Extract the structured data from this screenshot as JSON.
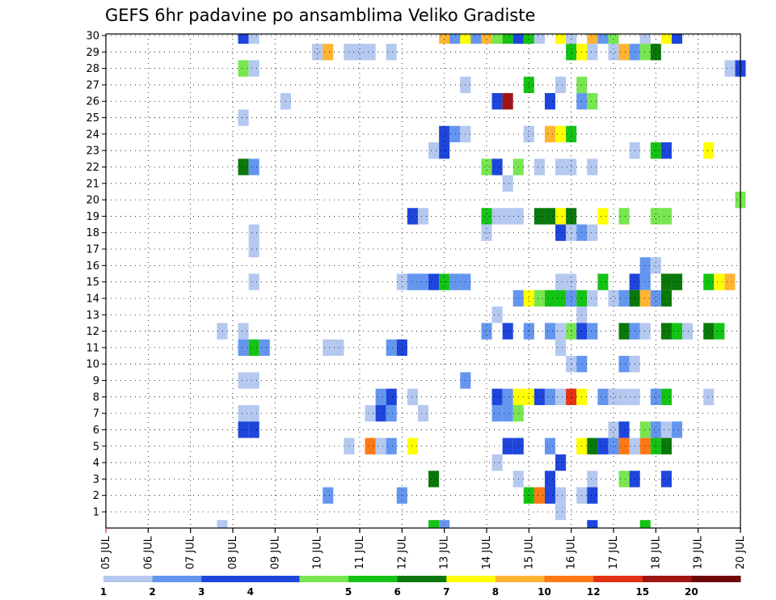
{
  "chart_data": {
    "type": "heatmap",
    "title": "GEFS 6hr padavine po ansamblima Veliko Gradiste",
    "xlabel": "",
    "ylabel": "",
    "y_ticks": [
      "1",
      "2",
      "3",
      "4",
      "5",
      "6",
      "7",
      "8",
      "9",
      "10",
      "11",
      "12",
      "13",
      "14",
      "15",
      "16",
      "17",
      "18",
      "19",
      "20",
      "21",
      "22",
      "23",
      "24",
      "25",
      "26",
      "27",
      "28",
      "29",
      "30"
    ],
    "x_ticks": [
      "05 JUL",
      "06 JUL",
      "07 JUL",
      "08 JUL",
      "09 JUL",
      "10 JUL",
      "11 JUL",
      "12 JUL",
      "13 JUL",
      "14 JUL",
      "15 JUL",
      "16 JUL",
      "17 JUL",
      "18 JUL",
      "19 JUL",
      "20 JUL"
    ],
    "x_range_days": [
      0,
      15
    ],
    "y_range": [
      0,
      30
    ],
    "legend": {
      "labels": [
        "1",
        "2",
        "3",
        "4",
        "5",
        "6",
        "7",
        "8",
        "10",
        "12",
        "15",
        "20"
      ],
      "colors": [
        "#b4c8f0",
        "#6496f0",
        "#1e46dc",
        "#1e46dc",
        "#78e650",
        "#14c314",
        "#0a780a",
        "#ffff00",
        "#ffb432",
        "#ff7814",
        "#e63214",
        "#a01414",
        "#6e0a0a"
      ]
    },
    "colors": {
      "1": "#b4c8f0",
      "2": "#6496f0",
      "3": "#1e46dc",
      "5": "#78e650",
      "6": "#14c314",
      "7": "#0a780a",
      "8": "#ffff00",
      "10": "#ffb432",
      "12": "#ff7814",
      "15": "#e63214",
      "20": "#a01414"
    },
    "cells": [
      [
        0,
        2.75,
        1
      ],
      [
        30,
        3.25,
        3
      ],
      [
        30,
        3.5,
        1
      ],
      [
        30,
        8.0,
        10
      ],
      [
        30,
        8.25,
        2
      ],
      [
        30,
        8.5,
        8
      ],
      [
        30,
        8.75,
        2
      ],
      [
        30,
        9.0,
        10
      ],
      [
        30,
        9.25,
        5
      ],
      [
        30,
        9.5,
        6
      ],
      [
        30,
        9.75,
        3
      ],
      [
        30,
        10.0,
        6
      ],
      [
        30,
        10.25,
        1
      ],
      [
        30,
        10.75,
        8
      ],
      [
        30,
        11.0,
        1
      ],
      [
        30,
        11.5,
        10
      ],
      [
        30,
        11.75,
        2
      ],
      [
        30,
        12.0,
        5
      ],
      [
        30,
        12.75,
        1
      ],
      [
        30,
        13.25,
        8
      ],
      [
        30,
        13.5,
        3
      ],
      [
        29,
        5.0,
        1
      ],
      [
        29,
        5.25,
        10
      ],
      [
        29,
        5.75,
        1
      ],
      [
        29,
        6.0,
        1
      ],
      [
        29,
        6.25,
        1
      ],
      [
        29,
        6.75,
        1
      ],
      [
        29,
        11.0,
        6
      ],
      [
        29,
        11.25,
        8
      ],
      [
        29,
        11.5,
        1
      ],
      [
        29,
        12.0,
        1
      ],
      [
        29,
        12.25,
        10
      ],
      [
        29,
        12.5,
        2
      ],
      [
        29,
        12.75,
        5
      ],
      [
        29,
        13.0,
        7
      ],
      [
        28,
        3.25,
        5
      ],
      [
        28,
        3.5,
        1
      ],
      [
        28,
        14.75,
        1
      ],
      [
        28,
        15.0,
        3
      ],
      [
        27,
        8.5,
        1
      ],
      [
        27,
        10.0,
        6
      ],
      [
        27,
        10.75,
        1
      ],
      [
        27,
        11.25,
        5
      ],
      [
        26,
        4.25,
        1
      ],
      [
        26,
        9.25,
        3
      ],
      [
        26,
        9.5,
        20
      ],
      [
        26,
        10.5,
        3
      ],
      [
        26,
        11.25,
        2
      ],
      [
        26,
        11.5,
        5
      ],
      [
        25,
        3.25,
        1
      ],
      [
        24,
        8.0,
        3
      ],
      [
        24,
        8.25,
        2
      ],
      [
        24,
        8.5,
        1
      ],
      [
        24,
        10.0,
        1
      ],
      [
        24,
        10.5,
        10
      ],
      [
        24,
        10.75,
        8
      ],
      [
        24,
        11.0,
        6
      ],
      [
        23,
        7.75,
        1
      ],
      [
        23,
        8.0,
        3
      ],
      [
        23,
        12.5,
        1
      ],
      [
        23,
        13.0,
        6
      ],
      [
        23,
        13.25,
        3
      ],
      [
        23,
        14.25,
        8
      ],
      [
        22,
        3.25,
        7
      ],
      [
        22,
        3.5,
        2
      ],
      [
        22,
        9.0,
        5
      ],
      [
        22,
        9.25,
        3
      ],
      [
        22,
        9.75,
        5
      ],
      [
        22,
        10.25,
        1
      ],
      [
        22,
        10.75,
        1
      ],
      [
        22,
        11.0,
        1
      ],
      [
        22,
        11.5,
        1
      ],
      [
        21,
        9.5,
        1
      ],
      [
        20,
        15.0,
        5
      ],
      [
        19,
        7.25,
        3
      ],
      [
        19,
        7.5,
        1
      ],
      [
        19,
        9.0,
        6
      ],
      [
        19,
        9.25,
        1
      ],
      [
        19,
        9.5,
        1
      ],
      [
        19,
        9.75,
        1
      ],
      [
        19,
        10.25,
        7
      ],
      [
        19,
        10.5,
        7
      ],
      [
        19,
        10.75,
        8
      ],
      [
        19,
        11.0,
        7
      ],
      [
        19,
        11.75,
        8
      ],
      [
        19,
        12.25,
        5
      ],
      [
        19,
        13.0,
        5
      ],
      [
        19,
        13.25,
        5
      ],
      [
        18,
        3.5,
        1
      ],
      [
        18,
        9.0,
        1
      ],
      [
        18,
        10.75,
        3
      ],
      [
        18,
        11.0,
        1
      ],
      [
        18,
        11.25,
        2
      ],
      [
        18,
        11.5,
        1
      ],
      [
        17,
        3.5,
        1
      ],
      [
        16,
        12.75,
        2
      ],
      [
        16,
        13.0,
        1
      ],
      [
        15,
        3.5,
        1
      ],
      [
        15,
        7.0,
        1
      ],
      [
        15,
        7.25,
        2
      ],
      [
        15,
        7.5,
        2
      ],
      [
        15,
        7.75,
        3
      ],
      [
        15,
        8.0,
        6
      ],
      [
        15,
        8.25,
        2
      ],
      [
        15,
        8.5,
        2
      ],
      [
        15,
        10.75,
        1
      ],
      [
        15,
        11.0,
        1
      ],
      [
        15,
        11.75,
        6
      ],
      [
        15,
        12.5,
        3
      ],
      [
        15,
        12.75,
        2
      ],
      [
        15,
        13.25,
        7
      ],
      [
        15,
        13.5,
        7
      ],
      [
        15,
        14.25,
        6
      ],
      [
        15,
        14.5,
        8
      ],
      [
        15,
        14.75,
        10
      ],
      [
        14,
        9.75,
        2
      ],
      [
        14,
        10.0,
        8
      ],
      [
        14,
        10.25,
        5
      ],
      [
        14,
        10.5,
        6
      ],
      [
        14,
        10.75,
        6
      ],
      [
        14,
        11.0,
        2
      ],
      [
        14,
        11.25,
        6
      ],
      [
        14,
        11.5,
        1
      ],
      [
        14,
        12.0,
        1
      ],
      [
        14,
        12.25,
        2
      ],
      [
        14,
        12.5,
        7
      ],
      [
        14,
        12.75,
        10
      ],
      [
        14,
        13.0,
        2
      ],
      [
        14,
        13.25,
        7
      ],
      [
        13,
        9.25,
        1
      ],
      [
        13,
        11.25,
        1
      ],
      [
        12,
        2.75,
        1
      ],
      [
        12,
        3.25,
        1
      ],
      [
        12,
        9.0,
        2
      ],
      [
        12,
        9.5,
        3
      ],
      [
        12,
        10.0,
        2
      ],
      [
        12,
        10.5,
        2
      ],
      [
        12,
        10.75,
        1
      ],
      [
        12,
        11.0,
        5
      ],
      [
        12,
        11.25,
        3
      ],
      [
        12,
        11.5,
        2
      ],
      [
        12,
        12.25,
        7
      ],
      [
        12,
        12.5,
        2
      ],
      [
        12,
        12.75,
        1
      ],
      [
        12,
        13.25,
        7
      ],
      [
        12,
        13.5,
        6
      ],
      [
        12,
        13.75,
        1
      ],
      [
        12,
        14.25,
        7
      ],
      [
        12,
        14.5,
        6
      ],
      [
        11,
        3.25,
        2
      ],
      [
        11,
        3.5,
        6
      ],
      [
        11,
        3.75,
        2
      ],
      [
        11,
        5.25,
        1
      ],
      [
        11,
        5.5,
        1
      ],
      [
        11,
        6.75,
        2
      ],
      [
        11,
        7.0,
        3
      ],
      [
        11,
        10.75,
        1
      ],
      [
        10,
        11.0,
        1
      ],
      [
        10,
        11.25,
        2
      ],
      [
        10,
        12.25,
        2
      ],
      [
        10,
        12.5,
        1
      ],
      [
        9,
        3.25,
        1
      ],
      [
        9,
        3.5,
        1
      ],
      [
        9,
        8.5,
        2
      ],
      [
        8,
        6.5,
        2
      ],
      [
        8,
        6.75,
        3
      ],
      [
        8,
        7.25,
        1
      ],
      [
        8,
        9.25,
        3
      ],
      [
        8,
        9.5,
        2
      ],
      [
        8,
        9.75,
        8
      ],
      [
        8,
        10.0,
        8
      ],
      [
        8,
        10.25,
        3
      ],
      [
        8,
        10.5,
        2
      ],
      [
        8,
        10.75,
        1
      ],
      [
        8,
        11.0,
        15
      ],
      [
        8,
        11.25,
        8
      ],
      [
        8,
        11.75,
        2
      ],
      [
        8,
        12.0,
        1
      ],
      [
        8,
        12.25,
        1
      ],
      [
        8,
        12.5,
        1
      ],
      [
        8,
        13.0,
        2
      ],
      [
        8,
        13.25,
        6
      ],
      [
        8,
        14.25,
        1
      ],
      [
        7,
        3.25,
        1
      ],
      [
        7,
        3.5,
        1
      ],
      [
        7,
        6.25,
        1
      ],
      [
        7,
        6.5,
        3
      ],
      [
        7,
        6.75,
        2
      ],
      [
        7,
        7.5,
        1
      ],
      [
        7,
        9.25,
        2
      ],
      [
        7,
        9.5,
        2
      ],
      [
        7,
        9.75,
        5
      ],
      [
        6,
        3.25,
        3
      ],
      [
        6,
        3.5,
        3
      ],
      [
        6,
        12.0,
        1
      ],
      [
        6,
        12.25,
        3
      ],
      [
        6,
        12.75,
        5
      ],
      [
        6,
        13.0,
        2
      ],
      [
        6,
        13.25,
        1
      ],
      [
        6,
        13.5,
        2
      ],
      [
        5,
        5.75,
        1
      ],
      [
        5,
        6.25,
        12
      ],
      [
        5,
        6.5,
        1
      ],
      [
        5,
        6.75,
        2
      ],
      [
        5,
        7.25,
        8
      ],
      [
        5,
        9.5,
        3
      ],
      [
        5,
        9.75,
        3
      ],
      [
        5,
        10.5,
        2
      ],
      [
        5,
        11.25,
        8
      ],
      [
        5,
        11.5,
        7
      ],
      [
        5,
        11.75,
        3
      ],
      [
        5,
        12.0,
        2
      ],
      [
        5,
        12.25,
        12
      ],
      [
        5,
        12.5,
        1
      ],
      [
        5,
        12.75,
        12
      ],
      [
        5,
        13.0,
        6
      ],
      [
        5,
        13.25,
        7
      ],
      [
        4,
        9.25,
        1
      ],
      [
        4,
        10.75,
        3
      ],
      [
        3,
        7.75,
        7
      ],
      [
        3,
        9.75,
        1
      ],
      [
        3,
        10.5,
        3
      ],
      [
        3,
        11.5,
        1
      ],
      [
        3,
        12.25,
        5
      ],
      [
        3,
        12.5,
        3
      ],
      [
        3,
        13.25,
        3
      ],
      [
        2,
        5.25,
        2
      ],
      [
        2,
        7.0,
        2
      ],
      [
        2,
        10.0,
        6
      ],
      [
        2,
        10.25,
        12
      ],
      [
        2,
        10.5,
        3
      ],
      [
        2,
        10.75,
        1
      ],
      [
        2,
        11.25,
        1
      ],
      [
        2,
        11.5,
        3
      ],
      [
        1,
        10.75,
        1
      ],
      [
        0,
        7.75,
        6
      ],
      [
        0,
        8.0,
        2
      ],
      [
        0,
        11.5,
        3
      ],
      [
        0,
        12.75,
        6
      ]
    ]
  }
}
